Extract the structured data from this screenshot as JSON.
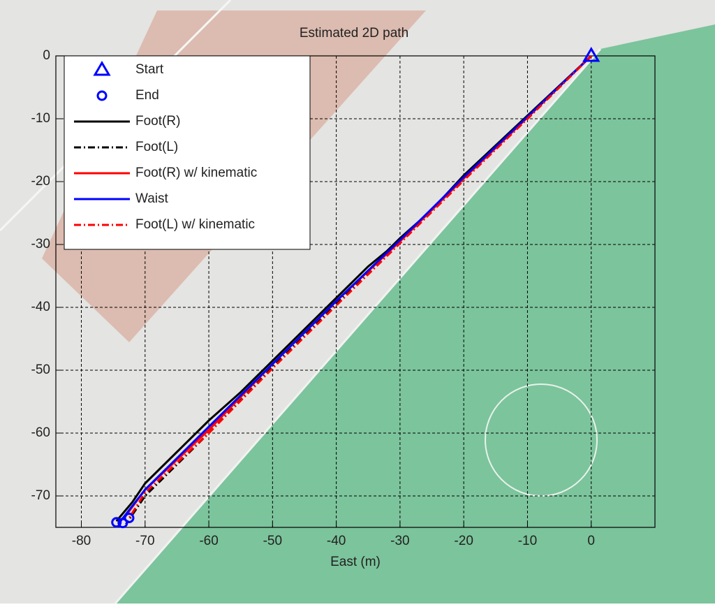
{
  "chart_data": {
    "type": "line",
    "title": "Estimated 2D path",
    "x_label": "East (m)",
    "xlim": [
      -84,
      10
    ],
    "ylim": [
      -75,
      0
    ],
    "xticks": [
      -80,
      -70,
      -60,
      -50,
      -40,
      -30,
      -20,
      -10,
      0
    ],
    "yticks": [
      -70,
      -60,
      -50,
      -40,
      -30,
      -20,
      -10,
      0
    ],
    "grid": true,
    "legend": "upper left",
    "series": [
      {
        "name": "Start",
        "color": "#0000ff",
        "marker": "triangle",
        "linestyle": "none",
        "x": [
          0
        ],
        "values": [
          0
        ]
      },
      {
        "name": "End",
        "color": "#0000ff",
        "marker": "circle",
        "linestyle": "none",
        "x": [
          -74.5,
          -73.5,
          -72.5
        ],
        "values": [
          -74.2,
          -74.3,
          -73.5
        ]
      },
      {
        "name": "Foot(R)",
        "color": "#000000",
        "marker": "none",
        "linestyle": "solid",
        "x": [
          0,
          -10,
          -20,
          -25,
          -30,
          -32,
          -35,
          -40,
          -45,
          -50,
          -55,
          -60,
          -65,
          -70,
          -72,
          -74.5
        ],
        "values": [
          0,
          -9.5,
          -19,
          -24.5,
          -29,
          -31,
          -33.5,
          -38.5,
          -43.5,
          -48.5,
          -53.5,
          -58,
          -63,
          -68,
          -71,
          -74
        ]
      },
      {
        "name": "Foot(L)",
        "color": "#000000",
        "marker": "none",
        "linestyle": "dashdot",
        "x": [
          0,
          -10,
          -20,
          -30,
          -40,
          -50,
          -60,
          -70,
          -73
        ],
        "values": [
          0,
          -10,
          -19.5,
          -29.5,
          -39.5,
          -49.5,
          -60,
          -70,
          -74.5
        ]
      },
      {
        "name": "Foot(R) w/ kinematic",
        "color": "#ff0000",
        "marker": "none",
        "linestyle": "solid",
        "x": [
          0,
          -10,
          -20,
          -30,
          -40,
          -50,
          -60,
          -70,
          -73.5
        ],
        "values": [
          0,
          -9.8,
          -19.5,
          -29.5,
          -39,
          -49,
          -59.5,
          -69,
          -73.8
        ]
      },
      {
        "name": "Waist",
        "color": "#0000ff",
        "marker": "none",
        "linestyle": "solid",
        "x": [
          0,
          -10,
          -20,
          -30,
          -40,
          -50,
          -60,
          -70,
          -74
        ],
        "values": [
          0,
          -9.7,
          -19.3,
          -29.3,
          -39,
          -49,
          -59,
          -69,
          -74.2
        ]
      },
      {
        "name": "Foot(L) w/ kinematic",
        "color": "#ff0000",
        "marker": "none",
        "linestyle": "dashdot",
        "x": [
          0,
          -10,
          -20,
          -30,
          -40,
          -50,
          -60,
          -70,
          -72.5
        ],
        "values": [
          0,
          -10,
          -19.8,
          -29.8,
          -39.7,
          -49.7,
          -60,
          -69.5,
          -73.5
        ]
      }
    ]
  }
}
